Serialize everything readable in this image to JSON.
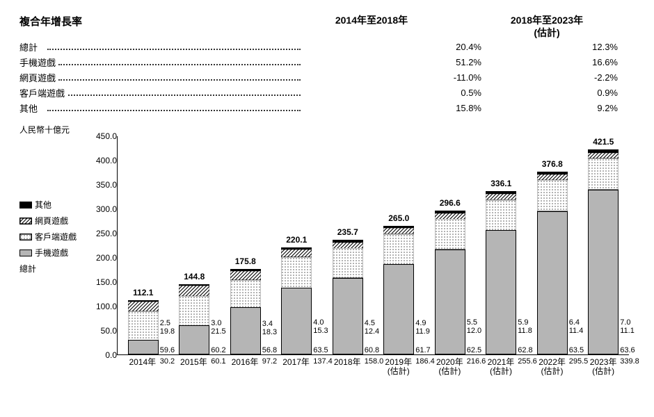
{
  "table": {
    "header_label": "複合年增長率",
    "col1_header": "2014年至2018年",
    "col2_header_l1": "2018年至2023年",
    "col2_header_l2": "(估計)",
    "rows": [
      {
        "label": "總計",
        "v1": "20.4%",
        "v2": "12.3%"
      },
      {
        "label": "手機遊戲",
        "v1": "51.2%",
        "v2": "16.6%"
      },
      {
        "label": "網頁遊戲",
        "v1": "-11.0%",
        "v2": "-2.2%"
      },
      {
        "label": "客戶端遊戲",
        "v1": "0.5%",
        "v2": "0.9%"
      },
      {
        "label": "其他",
        "v1": "15.8%",
        "v2": "9.2%"
      }
    ]
  },
  "chart": {
    "type": "stacked-bar",
    "yaxis_title": "人民幣十億元",
    "ymax": 450,
    "ytick_step": 50,
    "yticks": [
      "0.0",
      "50.0",
      "100.0",
      "150.0",
      "200.0",
      "250.0",
      "300.0",
      "350.0",
      "400.0",
      "450.0"
    ],
    "legend": [
      {
        "name": "其他",
        "fill": "#000000",
        "pattern": "solid"
      },
      {
        "name": "網頁遊戲",
        "fill": "hatch",
        "pattern": "diag"
      },
      {
        "name": "客戶端遊戲",
        "fill": "dots",
        "pattern": "dots"
      },
      {
        "name": "手機遊戲",
        "fill": "#b5b5b5",
        "pattern": "solid"
      },
      {
        "name": "總計",
        "fill": "none",
        "pattern": "none"
      }
    ],
    "colors": {
      "other": "#000000",
      "web_hatch_bg": "#ffffff",
      "client_dots_bg": "#ffffff",
      "mobile": "#b5b5b5",
      "border": "#000000",
      "text": "#000000"
    },
    "bars": [
      {
        "x": "2014年",
        "total": "112.1",
        "mobile": 30.2,
        "client": 59.6,
        "web": 19.8,
        "other": 2.5
      },
      {
        "x": "2015年",
        "total": "144.8",
        "mobile": 60.1,
        "client": 60.2,
        "web": 21.5,
        "other": 3.0
      },
      {
        "x": "2016年",
        "total": "175.8",
        "mobile": 97.2,
        "client": 56.8,
        "web": 18.3,
        "other": 3.4
      },
      {
        "x": "2017年",
        "total": "220.1",
        "mobile": 137.4,
        "client": 63.5,
        "web": 15.3,
        "other": 4.0
      },
      {
        "x": "2018年",
        "total": "235.7",
        "mobile": 158.0,
        "client": 60.8,
        "web": 12.4,
        "other": 4.5
      },
      {
        "x": "2019年",
        "x2": "(估計)",
        "total": "265.0",
        "mobile": 186.4,
        "client": 61.7,
        "web": 11.9,
        "other": 4.9
      },
      {
        "x": "2020年",
        "x2": "(估計)",
        "total": "296.6",
        "mobile": 216.6,
        "client": 62.5,
        "web": 12.0,
        "other": 5.5
      },
      {
        "x": "2021年",
        "x2": "(估計)",
        "total": "336.1",
        "mobile": 255.6,
        "client": 62.8,
        "web": 11.8,
        "other": 5.9
      },
      {
        "x": "2022年",
        "x2": "(估計)",
        "total": "376.8",
        "mobile": 295.5,
        "client": 63.5,
        "web": 11.4,
        "other": 6.4
      },
      {
        "x": "2023年",
        "x2": "(估計)",
        "total": "421.5",
        "mobile": 339.8,
        "client": 63.6,
        "web": 11.1,
        "other": 7.0
      }
    ]
  }
}
